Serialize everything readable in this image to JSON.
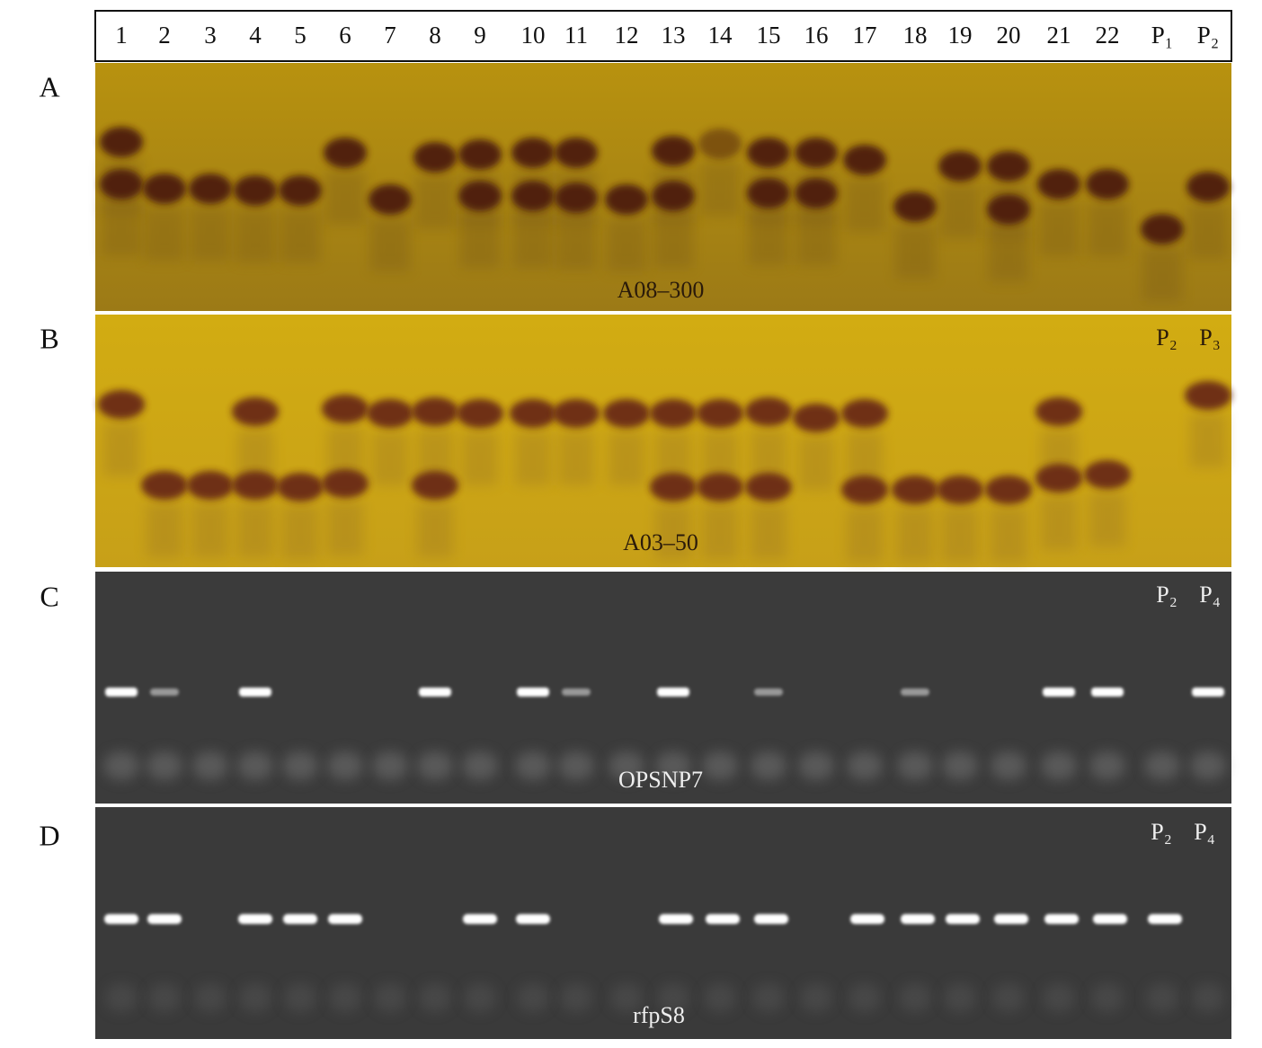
{
  "header": {
    "lanes": [
      "1",
      "2",
      "3",
      "4",
      "5",
      "6",
      "7",
      "8",
      "9",
      "10",
      "11",
      "12",
      "13",
      "14",
      "15",
      "16",
      "17",
      "18",
      "19",
      "20",
      "21",
      "22",
      "P₁",
      "P₂"
    ]
  },
  "panels": [
    {
      "letter": "A",
      "marker": "A08–300"
    },
    {
      "letter": "B",
      "marker": "A03–50",
      "parents": [
        "P₂",
        "P₃"
      ]
    },
    {
      "letter": "C",
      "marker": "OPSNP7",
      "parents": [
        "P₂",
        "P₄"
      ]
    },
    {
      "letter": "D",
      "marker": "rfpS8",
      "parents": [
        "P₂",
        "P₄"
      ]
    }
  ]
}
